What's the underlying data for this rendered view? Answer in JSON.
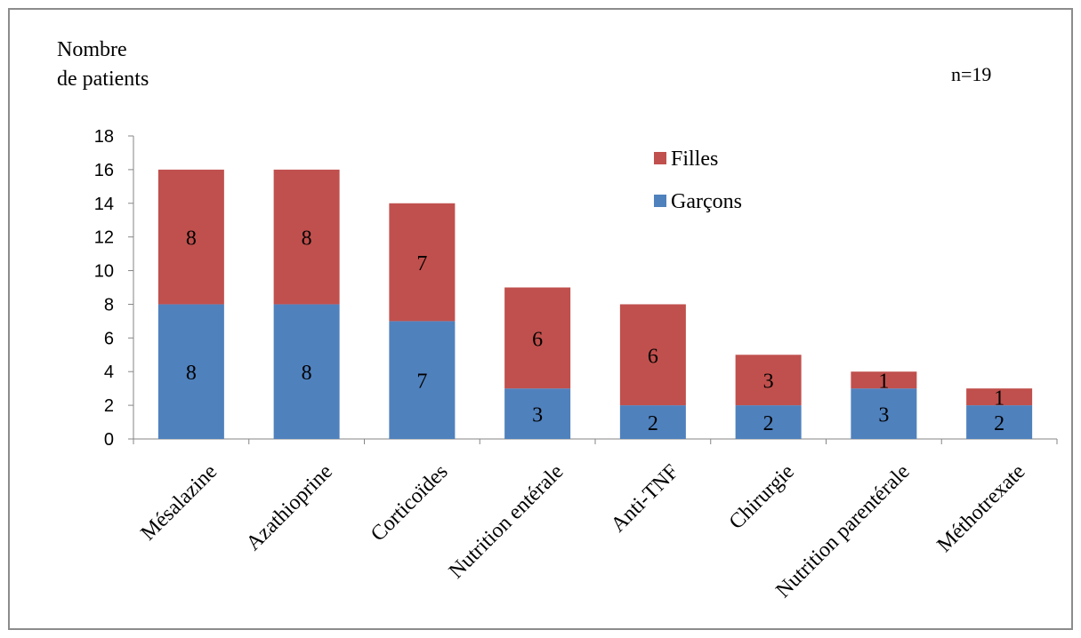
{
  "chart_data": {
    "type": "bar",
    "stacked": true,
    "ylabel_line1": "Nombre",
    "ylabel_line2": "de patients",
    "annotation": "n=19",
    "ylim": [
      0,
      18
    ],
    "yticks": [
      0,
      2,
      4,
      6,
      8,
      10,
      12,
      14,
      16,
      18
    ],
    "categories": [
      "Mésalazine",
      "Azathioprine",
      "Corticoïdes",
      "Nutrition entérale",
      "Anti-TNF",
      "Chirurgie",
      "Nutrition parentérale",
      "Méthotrexate"
    ],
    "series": [
      {
        "name": "Garçons",
        "color": "#4f81bd",
        "values": [
          8,
          8,
          7,
          3,
          2,
          2,
          3,
          2
        ]
      },
      {
        "name": "Filles",
        "color": "#c0504d",
        "values": [
          8,
          8,
          7,
          6,
          6,
          3,
          1,
          1
        ]
      }
    ],
    "legend_position": "top-right",
    "grid": false
  }
}
